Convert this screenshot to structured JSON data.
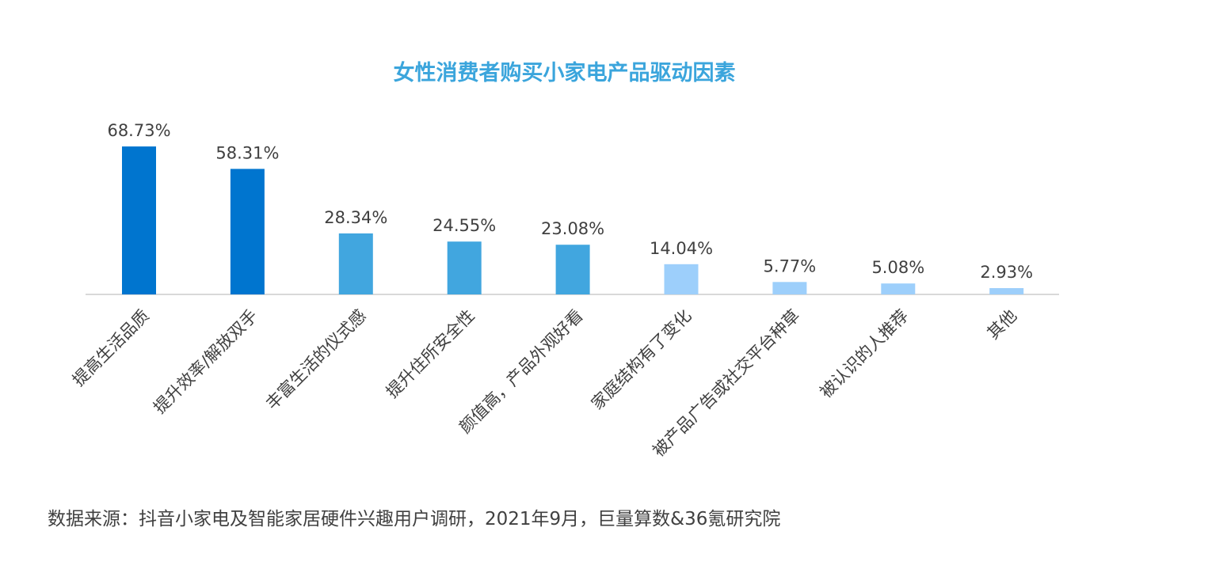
{
  "chart_data": {
    "type": "bar",
    "title": "女性消费者购买小家电产品驱动因素",
    "categories": [
      "提高生活品质",
      "提升效率/解放双手",
      "丰富生活的仪式感",
      "提升住所安全性",
      "颜值高，产品外观好看",
      "家庭结构有了变化",
      "被产品广告或社交平台种草",
      "被认识的人推荐",
      "其他"
    ],
    "values": [
      68.73,
      58.31,
      28.34,
      24.55,
      23.08,
      14.04,
      5.77,
      5.08,
      2.93
    ],
    "value_labels": [
      "68.73%",
      "58.31%",
      "28.34%",
      "24.55%",
      "23.08%",
      "14.04%",
      "5.77%",
      "5.08%",
      "2.93%"
    ],
    "bar_colors": [
      "#0075cf",
      "#0075cf",
      "#41a6df",
      "#41a6df",
      "#41a6df",
      "#9dcffb",
      "#9dcffb",
      "#9dcffb",
      "#9dcffb"
    ],
    "ylim": [
      0,
      75
    ],
    "grid": false,
    "legend": "none"
  },
  "source": "数据来源：抖音小家电及智能家居硬件兴趣用户调研，2021年9月，巨量算数&36氪研究院",
  "colors": {
    "title": "#3ba5dc",
    "axis": "#d9d9d9",
    "text": "#404040"
  }
}
